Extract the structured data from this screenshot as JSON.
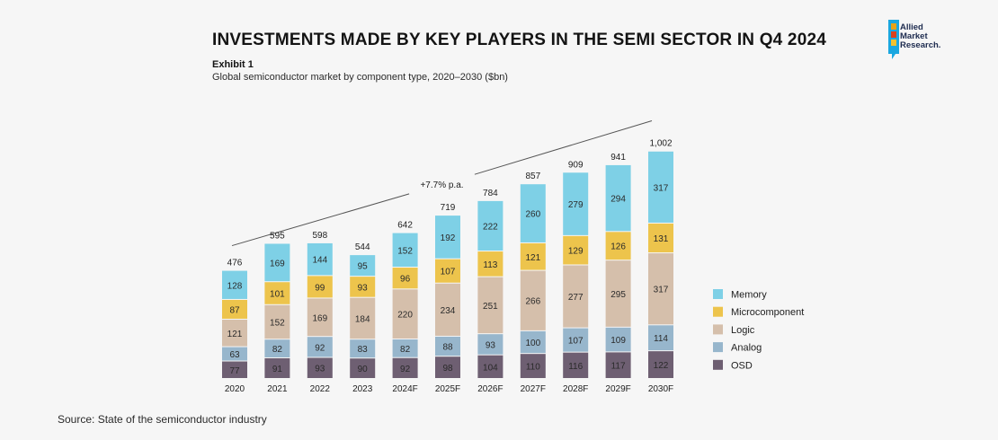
{
  "header": {
    "title": "INVESTMENTS MADE BY KEY PLAYERS IN THE SEMI SECTOR IN Q4 2024",
    "exhibit": "Exhibit 1",
    "subtitle": "Global semiconductor market by component type, 2020–2030 ($bn)"
  },
  "logo": {
    "line1": "Allied",
    "line2": "Market",
    "line3": "Research."
  },
  "source": "Source: State of the semiconductor industry",
  "chart_data": {
    "type": "bar",
    "stacked": true,
    "title": "Global semiconductor market by component type, 2020–2030 ($bn)",
    "categories": [
      "2020",
      "2021",
      "2022",
      "2023",
      "2024F",
      "2025F",
      "2026F",
      "2027F",
      "2028F",
      "2029F",
      "2030F"
    ],
    "series": [
      {
        "name": "OSD",
        "color": "#6e5f72",
        "values": [
          77,
          91,
          93,
          90,
          92,
          98,
          104,
          110,
          116,
          117,
          122
        ]
      },
      {
        "name": "Analog",
        "color": "#97b6cc",
        "values": [
          63,
          82,
          92,
          83,
          82,
          88,
          93,
          100,
          107,
          109,
          114
        ]
      },
      {
        "name": "Logic",
        "color": "#d5bfab",
        "values": [
          121,
          152,
          169,
          184,
          220,
          234,
          251,
          266,
          277,
          295,
          317
        ]
      },
      {
        "name": "Microcomponent",
        "color": "#edc44c",
        "values": [
          87,
          101,
          99,
          93,
          96,
          107,
          113,
          121,
          129,
          126,
          131
        ]
      },
      {
        "name": "Memory",
        "color": "#7ed0e6",
        "values": [
          128,
          169,
          144,
          95,
          152,
          192,
          222,
          260,
          279,
          294,
          317
        ]
      }
    ],
    "totals": [
      "476",
      "595",
      "598",
      "544",
      "642",
      "719",
      "784",
      "857",
      "909",
      "941",
      "1,002"
    ],
    "totals_values": [
      476,
      595,
      598,
      544,
      642,
      719,
      784,
      857,
      909,
      941,
      1002
    ],
    "legend": [
      "Memory",
      "Microcomponent",
      "Logic",
      "Analog",
      "OSD"
    ],
    "legend_position": "right",
    "annotation": "+7.7% p.a.",
    "xlabel": "",
    "ylabel": "",
    "grid": false
  }
}
